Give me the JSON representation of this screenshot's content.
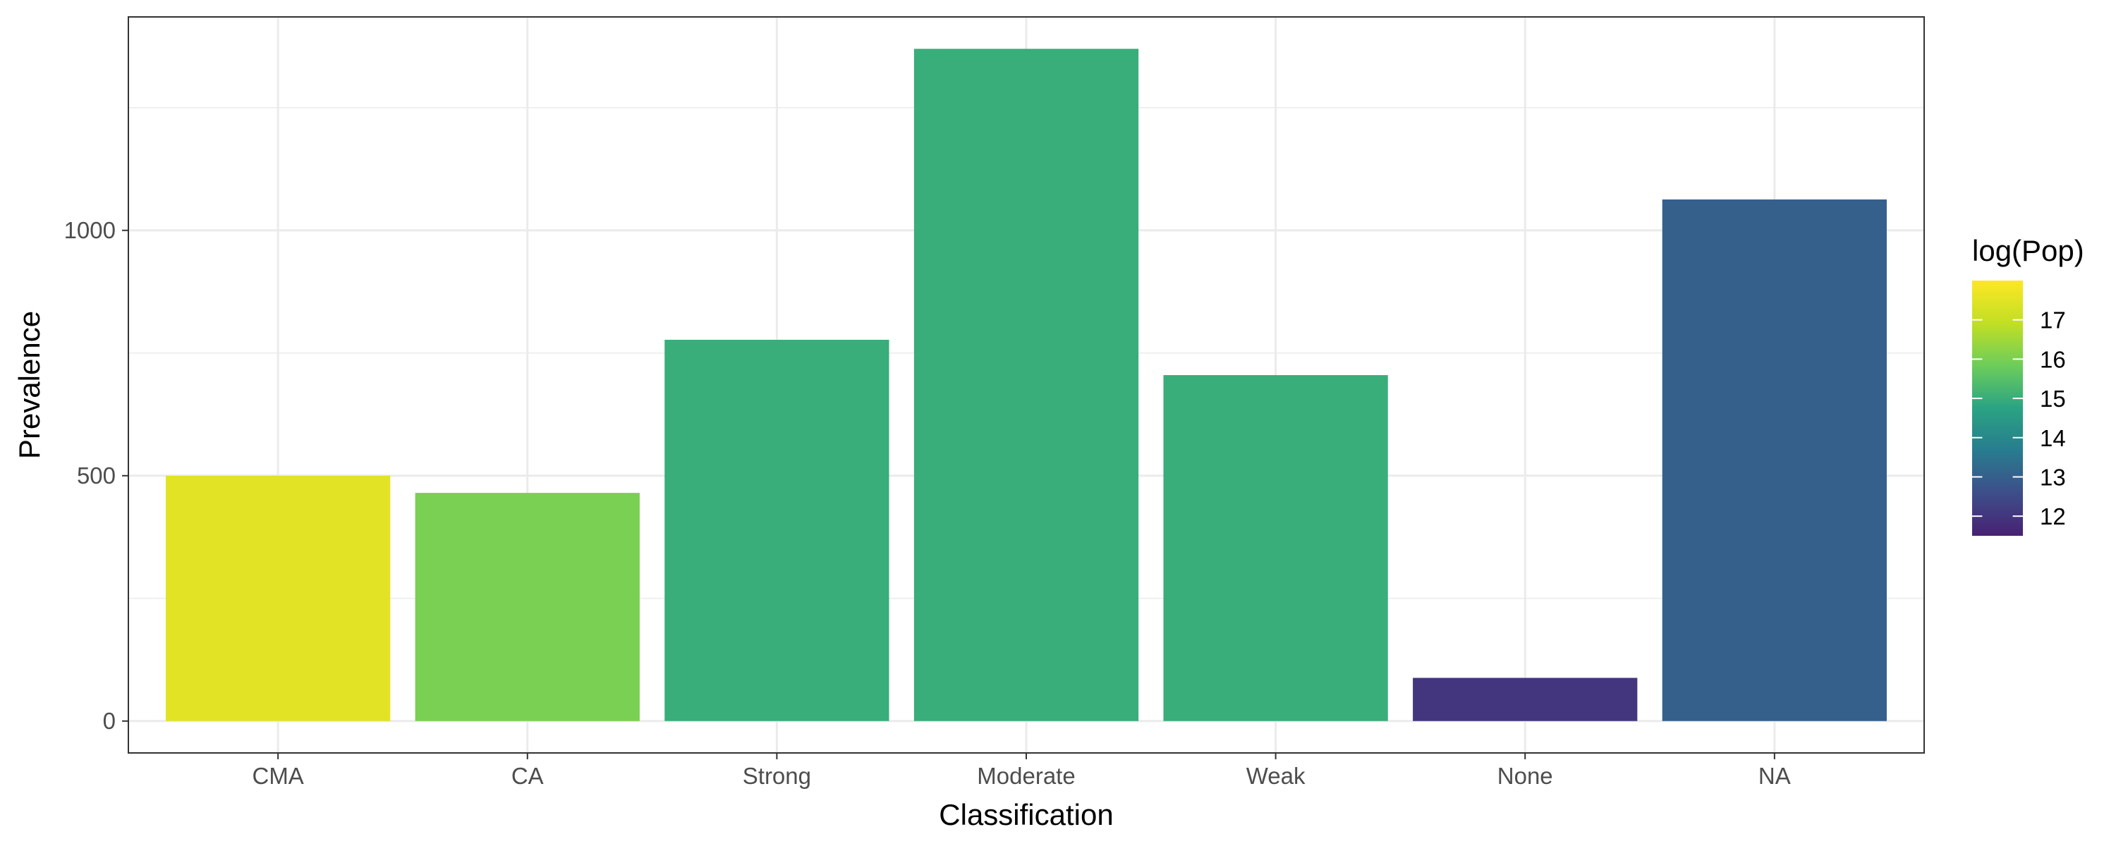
{
  "chart_data": {
    "type": "bar",
    "xlabel": "Classification",
    "ylabel": "Prevalence",
    "categories": [
      "CMA",
      "CA",
      "Strong",
      "Moderate",
      "Weak",
      "None",
      "NA"
    ],
    "values": [
      500,
      465,
      777,
      1370,
      705,
      88,
      1063
    ],
    "fill_values": [
      17.5,
      16.0,
      15.0,
      15.0,
      15.0,
      12.0,
      13.0
    ],
    "ylim": [
      -65,
      1435
    ],
    "y_ticks": [
      0,
      500,
      1000
    ],
    "y_tick_labels": [
      "0",
      "500",
      "1000"
    ],
    "grid": true,
    "legend": {
      "title": "log(Pop)",
      "placement": "right",
      "labels": [
        "17",
        "16",
        "15",
        "14",
        "13",
        "12"
      ],
      "label_values": [
        17,
        16,
        15,
        14,
        13,
        12
      ],
      "range": [
        11.5,
        18
      ],
      "colors": [
        "#fde725",
        "#c2df23",
        "#6ccd5a",
        "#2aa383",
        "#287c8e",
        "#3d4e8a",
        "#482173"
      ]
    }
  }
}
